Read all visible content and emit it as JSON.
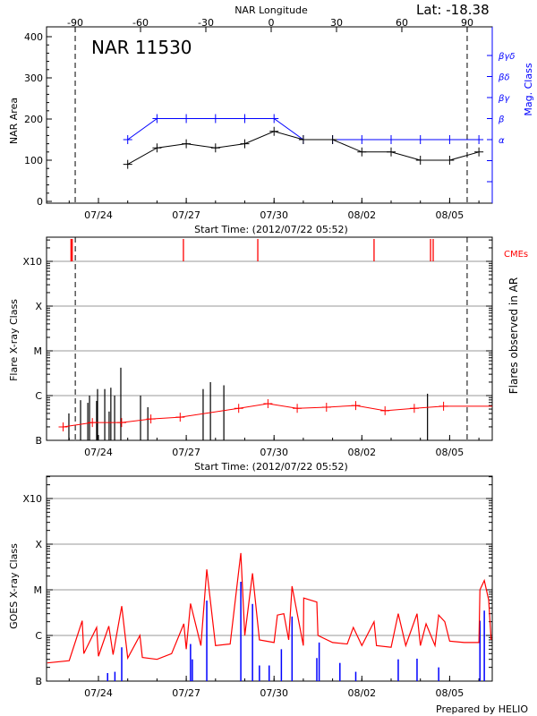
{
  "start_time": "2012/07/22 05:52",
  "footer": "Prepared by HELIO",
  "x_tick_labels": [
    "07/24",
    "07/27",
    "07/30",
    "08/02",
    "08/05"
  ],
  "colors": {
    "area": "#000000",
    "mag_class": "#0000ff",
    "cme": "#ff0000",
    "flare_bg": "#ff0000",
    "goes_long": "#ff0000",
    "goes_short": "#0000ff",
    "grid": "#999999"
  },
  "chart_data": [
    {
      "type": "line",
      "title": "NAR 11530",
      "latitude_label": "Lat: -18.38",
      "top_axis_label": "NAR Longitude",
      "top_ticks": [
        -90,
        -60,
        -30,
        0,
        30,
        60,
        90
      ],
      "xlabel": "Start Time: (2012/07/22 05:52)",
      "ylabel": "NAR Area",
      "ylabel_right": "Mag. Class",
      "ylim": [
        0,
        400
      ],
      "yticks": [
        0,
        100,
        200,
        300,
        400
      ],
      "mag_class_labels": [
        "α",
        "β",
        "βγ",
        "βδ",
        "βγδ"
      ],
      "limb_longitudes": [
        -90,
        90
      ],
      "series": [
        {
          "key": "area",
          "x": [
            "07/25 00:00",
            "07/26 00:00",
            "07/27 00:00",
            "07/28 00:00",
            "07/29 00:00",
            "07/30 00:00",
            "07/31 00:00",
            "08/01 00:00",
            "08/02 00:00",
            "08/03 00:00",
            "08/04 00:00",
            "08/05 00:00",
            "08/06 00:00"
          ],
          "values": [
            90,
            130,
            140,
            130,
            140,
            170,
            150,
            150,
            120,
            120,
            100,
            100,
            120
          ]
        },
        {
          "key": "mag_class",
          "x": [
            "07/25 00:00",
            "07/26 00:00",
            "07/27 00:00",
            "07/28 00:00",
            "07/29 00:00",
            "07/30 00:00",
            "07/31 00:00",
            "08/01 00:00",
            "08/02 00:00",
            "08/03 00:00",
            "08/04 00:00",
            "08/05 00:00",
            "08/06 00:00"
          ],
          "values": [
            "α",
            "β",
            "β",
            "β",
            "β",
            "β",
            "α",
            "α",
            "α",
            "α",
            "α",
            "α",
            "α"
          ]
        }
      ]
    },
    {
      "type": "bar",
      "xlabel": "Start Time: (2012/07/22 05:52)",
      "ylabel": "Flare X-ray Class",
      "ylabel_right": "Flares observed in AR",
      "cme_label": "CMEs",
      "class_labels": [
        "B",
        "C",
        "M",
        "X",
        "X10"
      ],
      "grid": true,
      "limb_times": [
        "07/23 05:00",
        "08/05 14:20"
      ],
      "cmes": [
        "07/23 01:30",
        "07/23 02:30",
        "07/26 21:40",
        "07/29 10:40",
        "08/02 10:00",
        "08/04 08:20",
        "08/04 10:30"
      ],
      "flares": [
        [
          "07/22 23:45",
          "B4.0"
        ],
        [
          "07/23 09:20",
          "B7.9"
        ],
        [
          "07/23 15:15",
          "B6.9"
        ],
        [
          "07/23 16:40",
          "C1.0"
        ],
        [
          "07/23 22:30",
          "B7.6"
        ],
        [
          "07/23 23:15",
          "C1.4"
        ],
        [
          "07/24 05:10",
          "C1.4"
        ],
        [
          "07/24 08:45",
          "B4.4"
        ],
        [
          "07/24 10:10",
          "C1.5"
        ],
        [
          "07/24 13:15",
          "C1.0"
        ],
        [
          "07/24 18:20",
          "C4.2"
        ],
        [
          "07/25 10:30",
          "C1.0"
        ],
        [
          "07/25 16:30",
          "B5.5"
        ],
        [
          "07/27 13:50",
          "C1.4"
        ],
        [
          "07/27 19:50",
          "C2.0"
        ],
        [
          "07/28 06:50",
          "C1.7"
        ],
        [
          "08/04 05:50",
          "C1.1"
        ]
      ],
      "background": [
        [
          "07/22 19:00",
          "B2.0"
        ],
        [
          "07/23 19:00",
          "B2.5"
        ],
        [
          "07/24 19:00",
          "B2.5"
        ],
        [
          "07/25 19:00",
          "B3.0"
        ],
        [
          "07/26 19:00",
          "B3.3"
        ],
        [
          "07/28 19:00",
          "B5.2"
        ],
        [
          "07/29 19:00",
          "B6.6"
        ],
        [
          "07/30 19:00",
          "B5.2"
        ],
        [
          "07/31 19:00",
          "B5.5"
        ],
        [
          "08/01 19:00",
          "B6.0"
        ],
        [
          "08/02 19:00",
          "B4.6"
        ],
        [
          "08/03 19:00",
          "B5.2"
        ],
        [
          "08/04 19:00",
          "B5.8"
        ],
        [
          "08/06 11:00",
          "B5.8"
        ]
      ]
    },
    {
      "type": "line",
      "ylabel": "GOES X-ray Class",
      "class_labels": [
        "B",
        "C",
        "M",
        "X",
        "X10"
      ],
      "grid": true,
      "series": [
        {
          "key": "goes_long",
          "points": [
            [
              "07/22 06:00",
              "B2.5"
            ],
            [
              "07/23 00:00",
              "B2.8"
            ],
            [
              "07/23 10:40",
              "C2.1"
            ],
            [
              "07/23 12:00",
              "B4.0"
            ],
            [
              "07/23 22:30",
              "C1.5"
            ],
            [
              "07/24 00:00",
              "B3.5"
            ],
            [
              "07/24 08:30",
              "C1.6"
            ],
            [
              "07/24 12:00",
              "B3.8"
            ],
            [
              "07/24 19:05",
              "C4.4"
            ],
            [
              "07/25 00:00",
              "B3.2"
            ],
            [
              "07/25 10:00",
              "C1.0"
            ],
            [
              "07/25 12:00",
              "B3.3"
            ],
            [
              "07/26 00:00",
              "B3.0"
            ],
            [
              "07/26 12:00",
              "B4.0"
            ],
            [
              "07/26 22:00",
              "C1.8"
            ],
            [
              "07/27 00:00",
              "B5.0"
            ],
            [
              "07/27 03:30",
              "C5.0"
            ],
            [
              "07/27 12:00",
              "B6.0"
            ],
            [
              "07/27 16:50",
              "M2.8"
            ],
            [
              "07/28 00:00",
              "B6.0"
            ],
            [
              "07/28 12:00",
              "B6.5"
            ],
            [
              "07/28 20:45",
              "M6.4"
            ],
            [
              "07/29 00:00",
              "C1.0"
            ],
            [
              "07/29 06:20",
              "M2.3"
            ],
            [
              "07/29 12:00",
              "B8.0"
            ],
            [
              "07/30 00:00",
              "B7.0"
            ],
            [
              "07/30 02:45",
              "C2.8"
            ],
            [
              "07/30 08:00",
              "C3.0"
            ],
            [
              "07/30 12:00",
              "B8.0"
            ],
            [
              "07/30 14:45",
              "M1.2"
            ],
            [
              "07/31 00:00",
              "B6.0"
            ],
            [
              "07/31 00:20",
              "C6.6"
            ],
            [
              "07/31 11:05",
              "C5.4"
            ],
            [
              "07/31 12:00",
              "C1.0"
            ],
            [
              "08/01 00:00",
              "B7.0"
            ],
            [
              "08/01 12:00",
              "B6.5"
            ],
            [
              "08/01 17:00",
              "C1.5"
            ],
            [
              "08/02 00:00",
              "B6.0"
            ],
            [
              "08/02 10:00",
              "C2.0"
            ],
            [
              "08/02 12:00",
              "B6.0"
            ],
            [
              "08/03 00:00",
              "B5.5"
            ],
            [
              "08/03 05:50",
              "C3.0"
            ],
            [
              "08/03 12:00",
              "B6.0"
            ],
            [
              "08/03 21:15",
              "C3.0"
            ],
            [
              "08/04 00:00",
              "B6.0"
            ],
            [
              "08/04 04:40",
              "C1.8"
            ],
            [
              "08/04 12:00",
              "B6.0"
            ],
            [
              "08/04 15:00",
              "C2.8"
            ],
            [
              "08/04 20:00",
              "C2.0"
            ],
            [
              "08/05 00:00",
              "B7.5"
            ],
            [
              "08/05 12:00",
              "B7.0"
            ],
            [
              "08/06 00:00",
              "B7.0"
            ],
            [
              "08/06 00:50",
              "M1.0"
            ],
            [
              "08/06 04:25",
              "M1.6"
            ],
            [
              "08/06 08:00",
              "C6.0"
            ],
            [
              "08/06 10:00",
              "B8.0"
            ]
          ]
        },
        {
          "key": "goes_short",
          "points": [
            [
              "07/24 07:30",
              "B1.5"
            ],
            [
              "07/24 13:30",
              "B1.6"
            ],
            [
              "07/24 19:05",
              "B5.5"
            ],
            [
              "07/27 03:30",
              "B6.5"
            ],
            [
              "07/27 05:00",
              "B3.0"
            ],
            [
              "07/27 16:50",
              "C5.8"
            ],
            [
              "07/28 20:45",
              "M1.5"
            ],
            [
              "07/29 06:20",
              "C4.9"
            ],
            [
              "07/29 12:00",
              "B2.2"
            ],
            [
              "07/29 20:00",
              "B2.2"
            ],
            [
              "07/30 06:00",
              "B5.0"
            ],
            [
              "07/30 14:45",
              "C2.6"
            ],
            [
              "07/31 11:05",
              "B3.2"
            ],
            [
              "07/31 13:00",
              "B7.0"
            ],
            [
              "08/01 06:00",
              "B2.5"
            ],
            [
              "08/01 19:00",
              "B1.6"
            ],
            [
              "08/03 05:50",
              "B3.0"
            ],
            [
              "08/03 21:15",
              "B3.1"
            ],
            [
              "08/04 15:00",
              "B2.0"
            ],
            [
              "08/06 00:50",
              "C2.1"
            ],
            [
              "08/06 04:25",
              "C3.5"
            ]
          ]
        }
      ]
    }
  ]
}
